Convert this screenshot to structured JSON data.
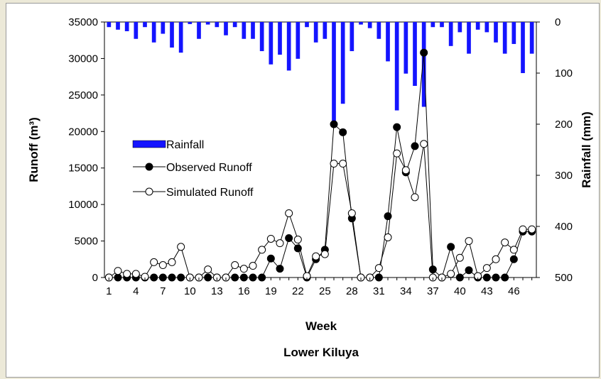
{
  "chart_data": {
    "type": "bar+line",
    "title": "Lower Kiluya",
    "xlabel": "Week",
    "ylabel_left": "Runoff (m³)",
    "ylabel_right": "Rainfall (mm)",
    "left_ylim": [
      0,
      35000
    ],
    "left_ticks": [
      0,
      5000,
      10000,
      15000,
      20000,
      25000,
      30000,
      35000
    ],
    "right_ylim_inverted": [
      0,
      500
    ],
    "right_ticks": [
      0,
      100,
      200,
      300,
      400,
      500
    ],
    "x_ticks": [
      1,
      4,
      7,
      10,
      13,
      16,
      19,
      22,
      25,
      28,
      31,
      34,
      37,
      40,
      43,
      46
    ],
    "weeks": [
      1,
      2,
      3,
      4,
      5,
      6,
      7,
      8,
      9,
      10,
      11,
      12,
      13,
      14,
      15,
      16,
      17,
      18,
      19,
      20,
      21,
      22,
      23,
      24,
      25,
      26,
      27,
      28,
      29,
      30,
      31,
      32,
      33,
      34,
      35,
      36,
      37,
      38,
      39,
      40,
      41,
      42,
      43,
      44,
      45,
      46,
      47,
      48
    ],
    "legend": {
      "rainfall": "Rainfall",
      "observed": "Observed Runoff",
      "simulated": "Simulated Runoff"
    },
    "series": [
      {
        "name": "Rainfall",
        "kind": "bar",
        "axis": "right",
        "color": "#1414ff",
        "values": [
          10,
          15,
          18,
          33,
          10,
          40,
          23,
          50,
          60,
          4,
          33,
          5,
          10,
          26,
          10,
          33,
          33,
          57,
          83,
          64,
          95,
          72,
          10,
          40,
          33,
          197,
          160,
          57,
          5,
          12,
          33,
          77,
          173,
          101,
          125,
          166,
          10,
          10,
          47,
          20,
          62,
          15,
          20,
          40,
          62,
          43,
          100,
          62
        ]
      },
      {
        "name": "Observed Runoff",
        "kind": "line",
        "axis": "left",
        "marker": "filled",
        "values": [
          0,
          0,
          0,
          0,
          0,
          0,
          0,
          0,
          0,
          0,
          0,
          0,
          0,
          0,
          0,
          0,
          0,
          0,
          2600,
          1200,
          5400,
          4000,
          0,
          2500,
          3800,
          21000,
          19900,
          8100,
          0,
          0,
          0,
          8400,
          20600,
          14400,
          18000,
          30800,
          1100,
          0,
          4200,
          0,
          1000,
          0,
          0,
          0,
          0,
          2500,
          6300,
          6300
        ]
      },
      {
        "name": "Simulated Runoff",
        "kind": "line",
        "axis": "left",
        "marker": "open",
        "values": [
          0,
          900,
          500,
          500,
          100,
          2100,
          1700,
          2100,
          4200,
          0,
          0,
          1100,
          0,
          0,
          1700,
          1200,
          1600,
          3800,
          5300,
          4700,
          8800,
          5200,
          200,
          2900,
          3200,
          15600,
          15600,
          8800,
          0,
          0,
          1300,
          5500,
          17000,
          14700,
          11000,
          18300,
          0,
          0,
          500,
          2700,
          5000,
          200,
          1300,
          2500,
          4800,
          3800,
          6600,
          6600
        ]
      }
    ]
  }
}
